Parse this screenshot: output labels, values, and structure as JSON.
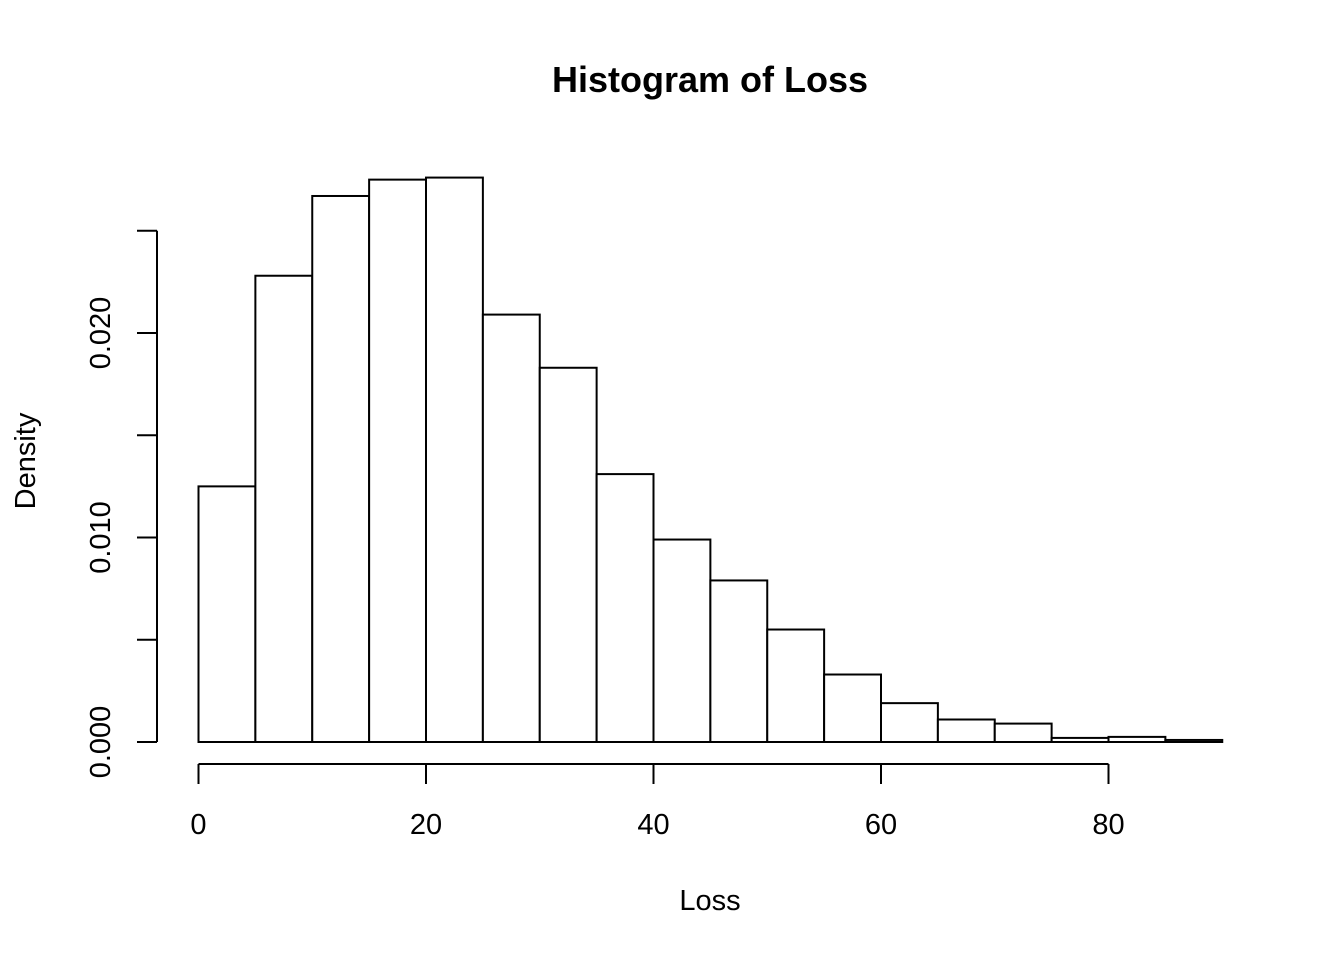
{
  "chart_data": {
    "type": "bar",
    "title": "Histogram of Loss",
    "xlabel": "Loss",
    "ylabel": "Density",
    "bin_edges": [
      0,
      5,
      10,
      15,
      20,
      25,
      30,
      35,
      40,
      45,
      50,
      55,
      60,
      65,
      70,
      75,
      80,
      85,
      90
    ],
    "values": [
      0.0125,
      0.0228,
      0.0267,
      0.0275,
      0.0276,
      0.0209,
      0.0183,
      0.0131,
      0.0099,
      0.0079,
      0.0055,
      0.0033,
      0.0019,
      0.0011,
      0.0009,
      0.0002,
      0.00025,
      0.0001
    ],
    "xlim": [
      0,
      90
    ],
    "ylim": [
      0,
      0.0276
    ],
    "x_ticks": [
      0,
      20,
      40,
      60,
      80
    ],
    "x_tick_labels": [
      "0",
      "20",
      "40",
      "60",
      "80"
    ],
    "y_ticks": [
      0,
      0.005,
      0.01,
      0.015,
      0.02,
      0.025
    ],
    "y_tick_labels": [
      "0.000",
      "",
      "0.010",
      "",
      "0.020",
      ""
    ],
    "grid": false,
    "legend": "none",
    "colors": {
      "bar_fill": "#ffffff",
      "bar_stroke": "#000000"
    }
  }
}
